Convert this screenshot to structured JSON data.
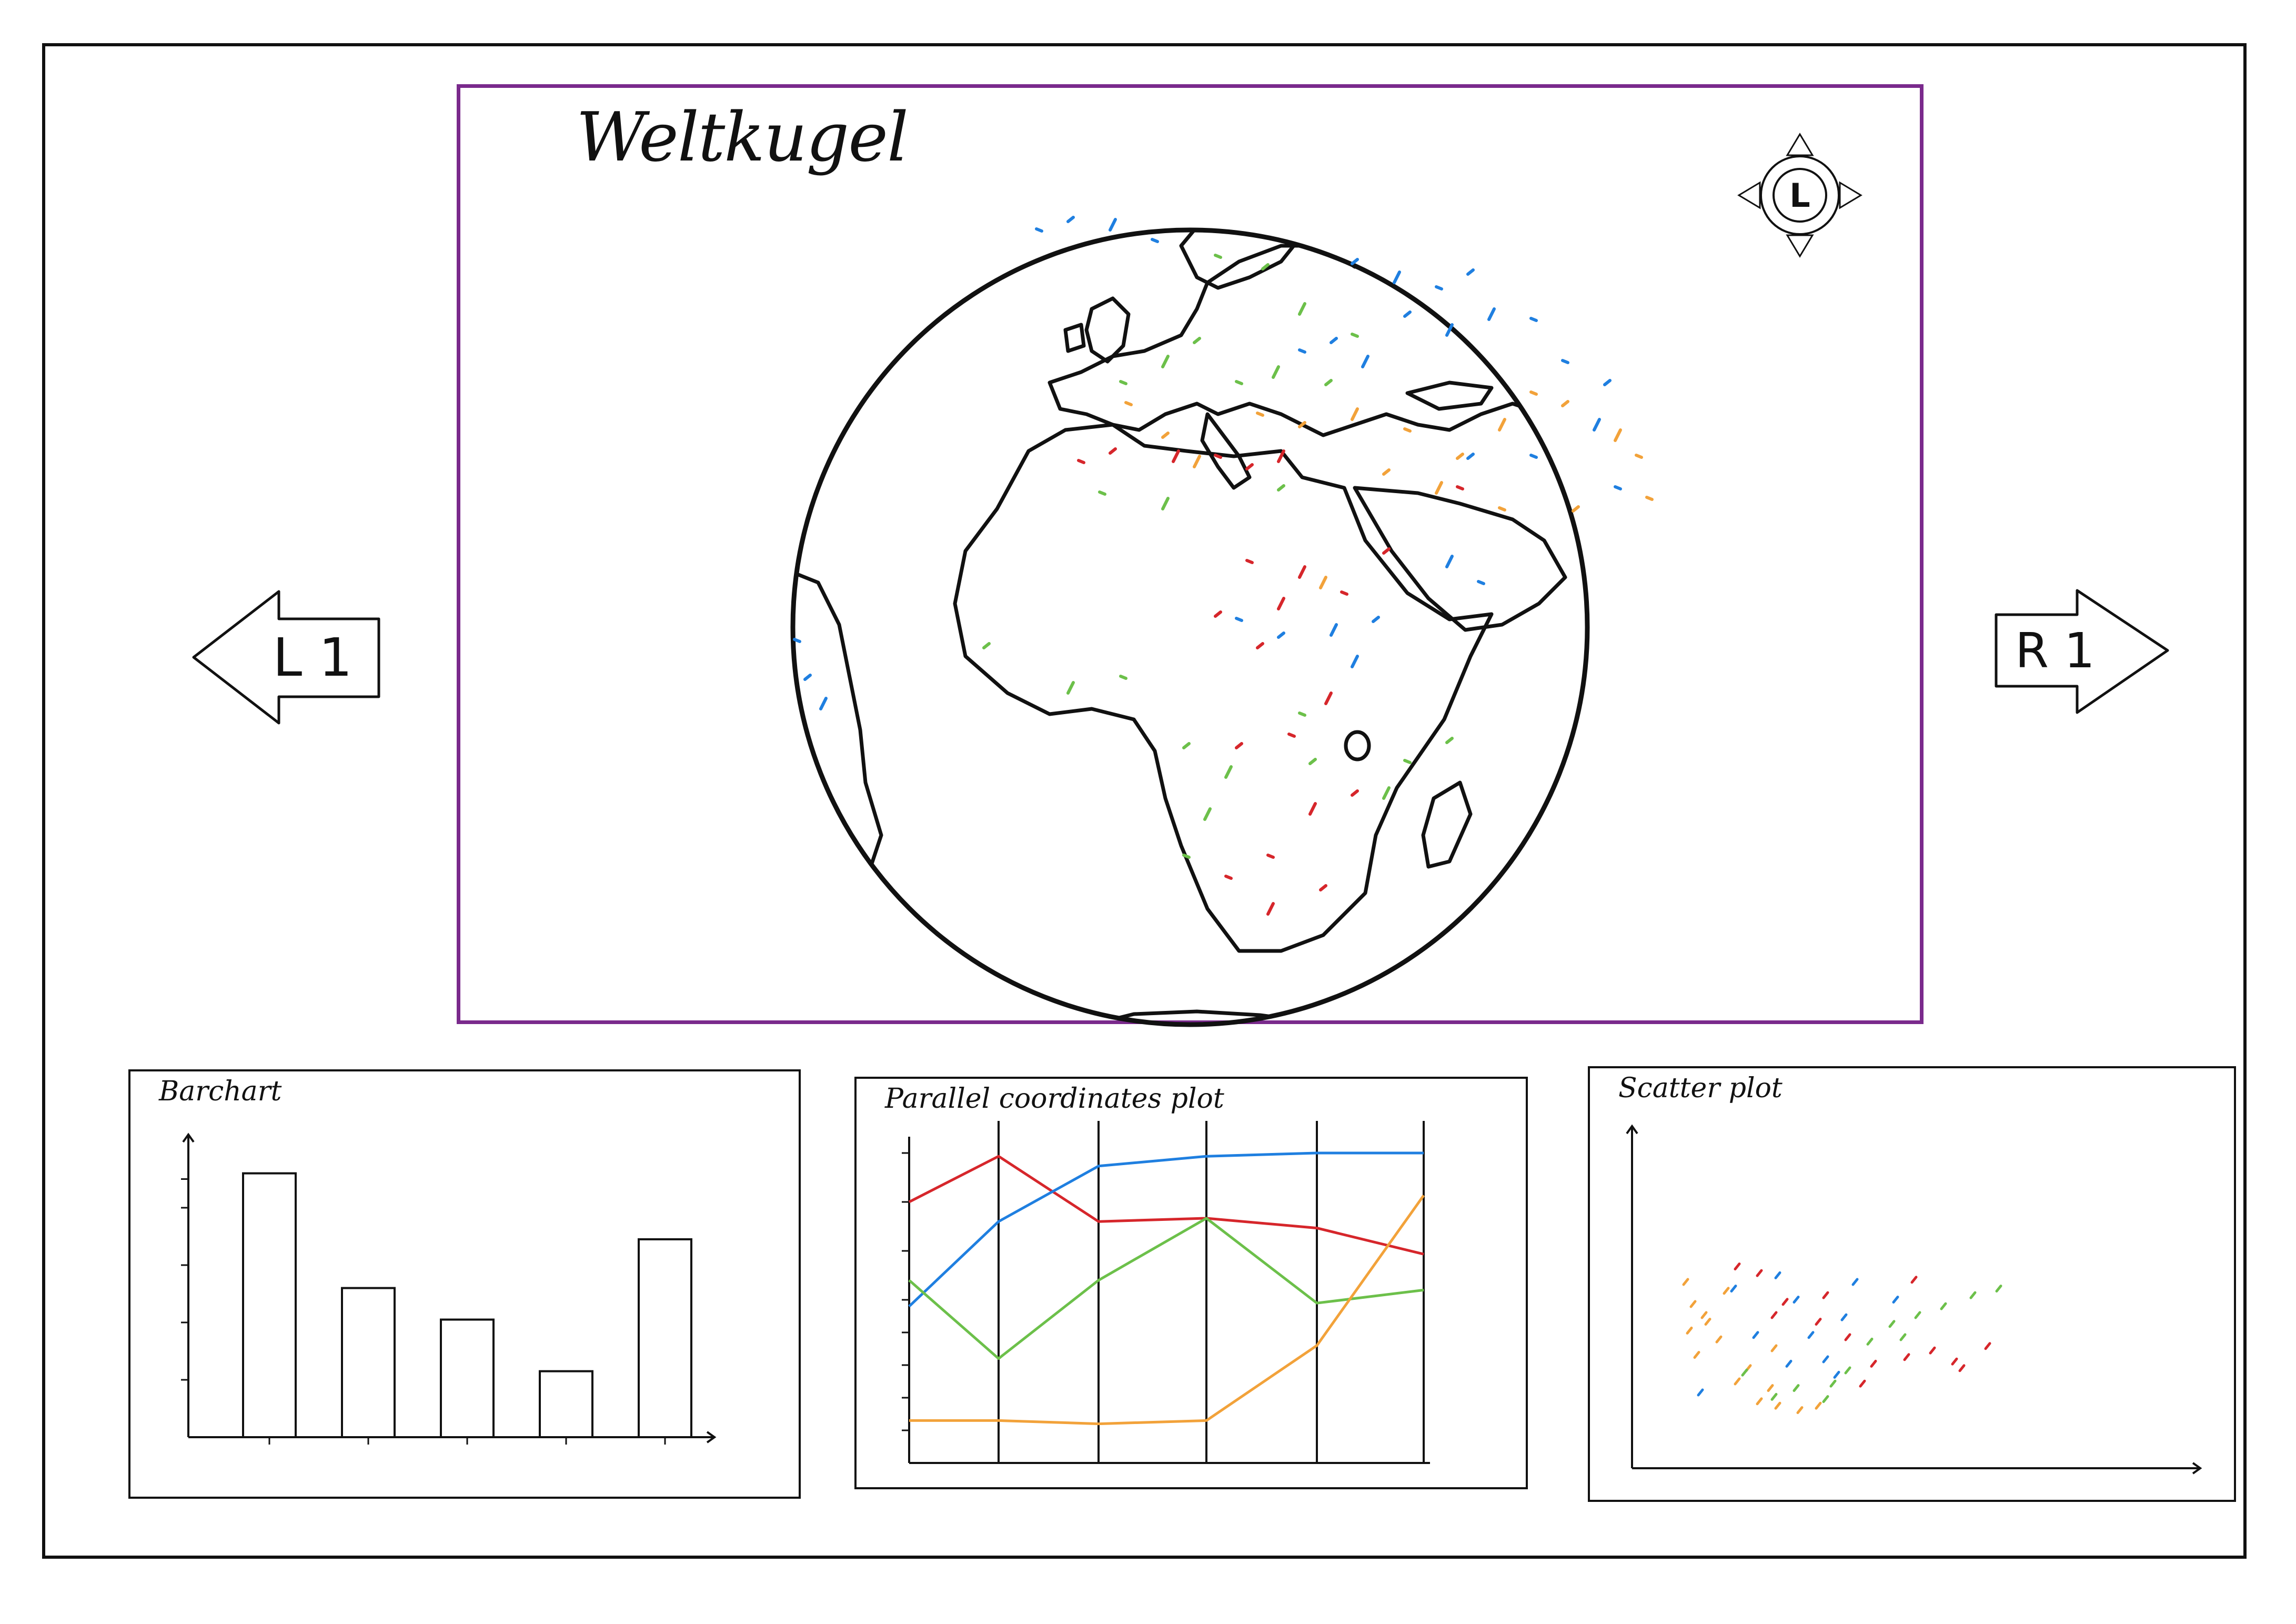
{
  "map": {
    "title": "Weltkugel",
    "dpad_label": "L",
    "dot_colors": {
      "blue": "#1f7fe0",
      "green": "#6cc04a",
      "orange": "#f2a23a",
      "red": "#d6262b"
    }
  },
  "nav": {
    "left_label": "L 1",
    "right_label": "R 1"
  },
  "colors": {
    "map_border": "#7a2a8c",
    "frame": "#111111"
  },
  "barchart": {
    "title": "Barchart",
    "chart_data": {
      "type": "bar",
      "categories": [
        "",
        "",
        "",
        "",
        ""
      ],
      "values": [
        9.2,
        5.2,
        4.1,
        2.3,
        6.9
      ],
      "ylim": [
        0,
        10
      ],
      "grid": false
    }
  },
  "parallel": {
    "title": "Parallel coordinates plot",
    "chart_data": {
      "type": "line",
      "axes_count": 6,
      "ylim": [
        0,
        10
      ],
      "series": [
        {
          "color": "#d6262b",
          "values": [
            8.0,
            9.4,
            7.4,
            7.5,
            7.2,
            6.4
          ]
        },
        {
          "color": "#1f7fe0",
          "values": [
            4.8,
            7.4,
            9.1,
            9.4,
            9.5,
            9.5
          ]
        },
        {
          "color": "#6cc04a",
          "values": [
            5.6,
            3.2,
            5.6,
            7.5,
            4.9,
            5.3
          ]
        },
        {
          "color": "#f2a23a",
          "values": [
            1.3,
            1.3,
            1.2,
            1.3,
            3.6,
            8.2
          ]
        }
      ]
    }
  },
  "scatter": {
    "title": "Scatter plot",
    "chart_data": {
      "type": "scatter",
      "xlim": [
        0,
        10
      ],
      "ylim": [
        0,
        10
      ],
      "series": [
        {
          "color": "#f2a23a",
          "points": [
            [
              0.6,
              7.0
            ],
            [
              0.8,
              6.0
            ],
            [
              1.2,
              5.2
            ],
            [
              1.5,
              4.4
            ],
            [
              0.9,
              3.7
            ],
            [
              2.0,
              2.5
            ],
            [
              2.6,
              1.6
            ],
            [
              1.7,
              6.6
            ],
            [
              3.1,
              1.4
            ],
            [
              3.7,
              1.2
            ],
            [
              1.1,
              5.5
            ],
            [
              2.3,
              3.1
            ],
            [
              3.0,
              4.0
            ],
            [
              0.7,
              4.8
            ],
            [
              4.2,
              1.4
            ],
            [
              2.9,
              2.2
            ]
          ]
        },
        {
          "color": "#d6262b",
          "points": [
            [
              2.0,
              7.7
            ],
            [
              2.6,
              7.4
            ],
            [
              3.3,
              6.1
            ],
            [
              4.2,
              5.2
            ],
            [
              5.0,
              4.5
            ],
            [
              5.7,
              3.3
            ],
            [
              6.6,
              3.6
            ],
            [
              7.3,
              3.9
            ],
            [
              8.1,
              3.1
            ],
            [
              8.8,
              4.1
            ],
            [
              4.4,
              6.4
            ],
            [
              3.0,
              5.5
            ],
            [
              6.8,
              7.1
            ],
            [
              5.4,
              2.4
            ],
            [
              7.9,
              3.4
            ]
          ]
        },
        {
          "color": "#1f7fe0",
          "points": [
            [
              1.9,
              6.7
            ],
            [
              3.1,
              7.3
            ],
            [
              2.5,
              4.6
            ],
            [
              4.0,
              4.6
            ],
            [
              3.6,
              6.2
            ],
            [
              4.9,
              5.4
            ],
            [
              4.4,
              3.5
            ],
            [
              5.2,
              7.0
            ],
            [
              1.0,
              2.0
            ],
            [
              3.4,
              3.3
            ],
            [
              6.3,
              6.2
            ],
            [
              4.7,
              2.8
            ]
          ]
        },
        {
          "color": "#6cc04a",
          "points": [
            [
              3.6,
              2.2
            ],
            [
              4.4,
              1.7
            ],
            [
              5.0,
              3.0
            ],
            [
              5.6,
              4.3
            ],
            [
              6.2,
              5.1
            ],
            [
              6.9,
              5.5
            ],
            [
              7.6,
              5.9
            ],
            [
              8.4,
              6.4
            ],
            [
              9.1,
              6.7
            ],
            [
              2.2,
              2.9
            ],
            [
              3.0,
              1.8
            ],
            [
              4.6,
              2.4
            ],
            [
              6.5,
              4.5
            ]
          ]
        }
      ]
    }
  }
}
